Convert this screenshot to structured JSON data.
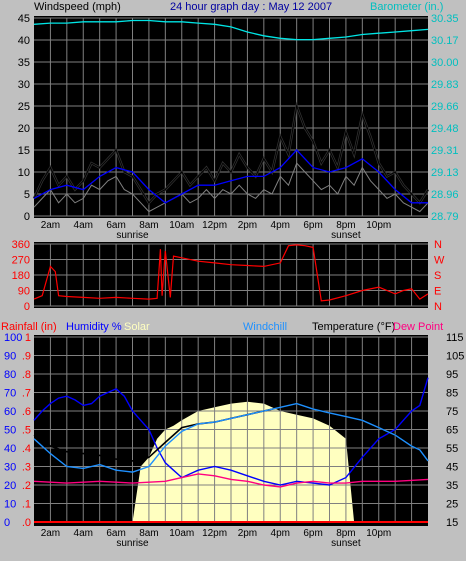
{
  "header": {
    "windspeed_label": "Windspeed (mph)",
    "title": "24 hour graph day : May 12 2007",
    "barometer_label": "Barometer (in.)"
  },
  "time_axis": {
    "labels": [
      "2am",
      "4am",
      "6am",
      "8am",
      "10am",
      "12pm",
      "2pm",
      "4pm",
      "6pm",
      "8pm",
      "10pm"
    ],
    "sunrise_label": "sunrise",
    "sunset_label": "sunset"
  },
  "colors": {
    "background": "#c0c0c0",
    "plot_bg": "#000000",
    "wind": "#000000",
    "gust": "#000000",
    "wind_avg": "#0000ff",
    "barometer": "#00e5e5",
    "direction": "#ff0000",
    "humidity": "#0000ff",
    "solar": "#ffffc0",
    "temperature": "#000000",
    "dewpoint": "#ff0080",
    "windchill": "#1e90ff",
    "rain": "#ff0000",
    "title": "#0000a0"
  },
  "chart_data": [
    {
      "type": "line",
      "title": "24 hour graph day : May 12 2007",
      "ylabel": "Windspeed (mph)",
      "y2label": "Barometer (in.)",
      "x_unit": "hour of day",
      "xlim": [
        0,
        24
      ],
      "ylim": [
        0,
        45
      ],
      "y_ticks": [
        0,
        5,
        10,
        15,
        20,
        25,
        30,
        35,
        40,
        45
      ],
      "y2_ticks": [
        "28.79",
        "28.96",
        "29.13",
        "29.31",
        "29.48",
        "29.66",
        "29.83",
        "30.00",
        "30.17",
        "30.35"
      ],
      "y2lim": [
        28.79,
        30.35
      ],
      "series": [
        {
          "name": "wind gust",
          "x": [
            0,
            0.5,
            1,
            1.5,
            2,
            2.5,
            3,
            3.5,
            4,
            4.5,
            5,
            5.5,
            6,
            6.5,
            7,
            7.5,
            8,
            8.5,
            9,
            9.5,
            10,
            10.5,
            11,
            11.5,
            12,
            12.5,
            13,
            13.5,
            14,
            14.5,
            15,
            15.5,
            16,
            16.5,
            17,
            17.5,
            18,
            18.5,
            19,
            19.5,
            20,
            20.5,
            21,
            21.5,
            22,
            22.5,
            23,
            23.5,
            24
          ],
          "values": [
            4,
            8,
            11,
            7,
            9,
            6,
            8,
            12,
            11,
            13,
            15,
            10,
            9,
            6,
            3,
            5,
            6,
            8,
            10,
            7,
            9,
            11,
            8,
            12,
            10,
            14,
            11,
            9,
            13,
            10,
            18,
            14,
            25,
            20,
            17,
            12,
            15,
            11,
            19,
            14,
            23,
            18,
            12,
            9,
            10,
            7,
            5,
            3,
            6
          ]
        },
        {
          "name": "wind speed",
          "x": [
            0,
            0.5,
            1,
            1.5,
            2,
            2.5,
            3,
            3.5,
            4,
            4.5,
            5,
            5.5,
            6,
            6.5,
            7,
            7.5,
            8,
            8.5,
            9,
            9.5,
            10,
            10.5,
            11,
            11.5,
            12,
            12.5,
            13,
            13.5,
            14,
            14.5,
            15,
            15.5,
            16,
            16.5,
            17,
            17.5,
            18,
            18.5,
            19,
            19.5,
            20,
            20.5,
            21,
            21.5,
            22,
            22.5,
            23,
            23.5,
            24
          ],
          "values": [
            2,
            4,
            6,
            3,
            5,
            3,
            4,
            7,
            6,
            8,
            9,
            6,
            5,
            3,
            1,
            2,
            3,
            4,
            5,
            3,
            4,
            6,
            4,
            6,
            5,
            7,
            5,
            4,
            6,
            5,
            9,
            7,
            12,
            10,
            8,
            6,
            7,
            5,
            9,
            7,
            11,
            8,
            6,
            4,
            5,
            3,
            2,
            1,
            3
          ]
        },
        {
          "name": "wind average",
          "x": [
            0,
            1,
            2,
            3,
            4,
            5,
            6,
            7,
            8,
            9,
            10,
            11,
            12,
            13,
            14,
            15,
            16,
            17,
            18,
            19,
            20,
            21,
            22,
            23,
            24
          ],
          "values": [
            4,
            6,
            7,
            6,
            9,
            11,
            10,
            6,
            3,
            5,
            7,
            7,
            8,
            9,
            9,
            11,
            15,
            11,
            10,
            11,
            13,
            10,
            6,
            3,
            3
          ]
        },
        {
          "name": "barometer",
          "x": [
            0,
            1,
            2,
            3,
            4,
            5,
            6,
            7,
            8,
            9,
            10,
            11,
            12,
            13,
            14,
            15,
            16,
            17,
            18,
            19,
            20,
            21,
            22,
            23,
            24
          ],
          "values": [
            30.3,
            30.31,
            30.31,
            30.32,
            30.32,
            30.32,
            30.33,
            30.33,
            30.32,
            30.32,
            30.31,
            30.3,
            30.28,
            30.24,
            30.21,
            30.19,
            30.18,
            30.18,
            30.19,
            30.2,
            30.22,
            30.23,
            30.24,
            30.25,
            30.26
          ]
        }
      ]
    },
    {
      "type": "line",
      "ylabel": "wind direction",
      "xlim": [
        0,
        24
      ],
      "ylim": [
        0,
        360
      ],
      "y_ticks": [
        0,
        90,
        180,
        270,
        360
      ],
      "compass_labels": [
        "N",
        "W",
        "S",
        "E",
        "N"
      ],
      "series": [
        {
          "name": "wind direction",
          "x": [
            0,
            0.5,
            1,
            1.3,
            1.5,
            2,
            3,
            4,
            5,
            6,
            7,
            7.5,
            7.7,
            7.8,
            8,
            8.3,
            8.5,
            9,
            10,
            11,
            12,
            13,
            14,
            15,
            15.5,
            16,
            16.5,
            17,
            17.5,
            18,
            19,
            20,
            21,
            22,
            22.5,
            23,
            23.5,
            24
          ],
          "values": [
            40,
            60,
            230,
            200,
            60,
            55,
            50,
            45,
            50,
            45,
            40,
            45,
            330,
            60,
            320,
            50,
            290,
            280,
            260,
            250,
            240,
            235,
            230,
            250,
            350,
            355,
            350,
            340,
            30,
            35,
            60,
            90,
            110,
            70,
            90,
            100,
            40,
            70
          ]
        }
      ]
    },
    {
      "type": "line",
      "title_left": "Rainfall (in)",
      "humidity_label": "Humidity %",
      "solar_label": "Solar",
      "windchill_label": "Windchill",
      "temperature_label": "Temperature (°F)",
      "dewpoint_label": "Dew Point",
      "xlim": [
        0,
        24
      ],
      "rain_ticks": [
        ".0",
        ".1",
        ".2",
        ".3",
        ".4",
        ".5",
        ".6",
        ".7",
        ".8",
        ".9",
        "1"
      ],
      "rain_lim": [
        0,
        1
      ],
      "humidity_ticks": [
        0,
        10,
        20,
        30,
        40,
        50,
        60,
        70,
        80,
        90,
        100
      ],
      "humidity_lim": [
        0,
        100
      ],
      "temp_ticks": [
        15,
        25,
        35,
        45,
        55,
        65,
        75,
        85,
        95,
        105,
        115
      ],
      "temp_lim": [
        15,
        115
      ],
      "series": [
        {
          "name": "Humidity %",
          "x": [
            0,
            0.5,
            1,
            1.5,
            2,
            2.5,
            3,
            3.5,
            4,
            4.5,
            5,
            5.5,
            6,
            6.5,
            7,
            7.5,
            8,
            8.5,
            9,
            9.5,
            10,
            11,
            12,
            13,
            14,
            15,
            16,
            17,
            18,
            19,
            20,
            21,
            22,
            23,
            23.5,
            24
          ],
          "values": [
            55,
            60,
            64,
            67,
            68,
            66,
            63,
            64,
            68,
            70,
            72,
            68,
            60,
            55,
            50,
            40,
            32,
            28,
            24,
            26,
            28,
            30,
            28,
            25,
            22,
            20,
            22,
            21,
            20,
            24,
            35,
            45,
            50,
            60,
            63,
            78
          ]
        },
        {
          "name": "Solar",
          "x": [
            0,
            6,
            6.5,
            7,
            7.5,
            8,
            8.5,
            9,
            10,
            11,
            12,
            13,
            14,
            15,
            16,
            17,
            18,
            19,
            19.5,
            24
          ],
          "values": [
            0,
            0,
            30,
            35,
            45,
            50,
            52,
            55,
            60,
            62,
            64,
            65,
            64,
            60,
            58,
            56,
            52,
            45,
            0,
            0
          ]
        },
        {
          "name": "Temperature (°F)",
          "x": [
            0,
            1,
            2,
            3,
            4,
            5,
            6,
            7,
            8,
            9,
            10,
            11,
            12,
            13,
            14,
            15,
            16,
            17,
            18,
            19,
            20,
            21,
            22,
            23,
            23.5,
            24
          ],
          "values": [
            62,
            56,
            53,
            52,
            51,
            49,
            48,
            50,
            58,
            66,
            68,
            69,
            71,
            73,
            75,
            77,
            79,
            76,
            74,
            72,
            70,
            66,
            62,
            56,
            54,
            48
          ]
        },
        {
          "name": "Windchill",
          "x": [
            0,
            1,
            2,
            3,
            4,
            5,
            6,
            7,
            8,
            9,
            10,
            11,
            12,
            13,
            14,
            15,
            16,
            17,
            18,
            19,
            20,
            21,
            22,
            23,
            23.5,
            24
          ],
          "values": [
            60,
            52,
            45,
            44,
            46,
            43,
            42,
            45,
            56,
            64,
            68,
            69,
            71,
            73,
            75,
            77,
            79,
            76,
            74,
            72,
            70,
            66,
            62,
            56,
            54,
            48
          ]
        },
        {
          "name": "Dew Point",
          "x": [
            0,
            2,
            4,
            6,
            8,
            9,
            10,
            11,
            12,
            13,
            14,
            15,
            16,
            17,
            18,
            19,
            20,
            22,
            24
          ],
          "values": [
            37,
            36,
            37,
            36,
            37,
            39,
            41,
            40,
            38,
            37,
            35,
            34,
            36,
            37,
            36,
            36,
            37,
            37,
            38
          ]
        },
        {
          "name": "Rainfall (in)",
          "x": [
            0,
            24
          ],
          "values": [
            0,
            0
          ]
        }
      ]
    }
  ]
}
